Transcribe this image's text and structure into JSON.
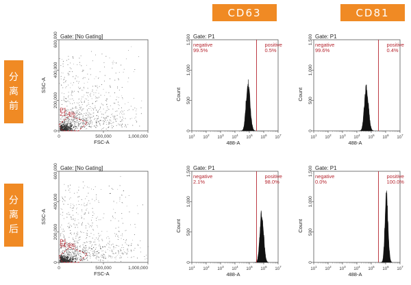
{
  "headers": {
    "cd63": "CD63",
    "cd81": "CD81"
  },
  "rows": [
    {
      "label_chars": [
        "分",
        "离",
        "前"
      ]
    },
    {
      "label_chars": [
        "分",
        "离",
        "后"
      ]
    }
  ],
  "chart_data": [
    {
      "type": "scatter",
      "row": 0,
      "gate": "Gate: [No Gating]",
      "xlabel": "FSC-A",
      "ylabel": "SSC-A",
      "xticks": [
        "0",
        "500,000",
        "1,000,000"
      ],
      "yticks": [
        "0",
        "200,000",
        "400,000",
        "600,000"
      ],
      "xlim": [
        0,
        1000000
      ],
      "ylim": [
        0,
        600000
      ],
      "region": {
        "name": "P1",
        "percent": "21.4%"
      }
    },
    {
      "type": "histogram",
      "row": 0,
      "marker": "CD63",
      "gate": "Gate: P1",
      "xlabel": "488-A",
      "ylabel": "Count",
      "yticks": [
        "0",
        "500",
        "1,000",
        "1,500"
      ],
      "ylim": [
        0,
        1500
      ],
      "xlim_log": [
        1,
        7
      ],
      "threshold_log": 5.5,
      "negative": {
        "label": "negative",
        "percent": "99.5%"
      },
      "positive": {
        "label": "positive",
        "percent": "0.5%"
      },
      "peak_log": 4.9,
      "peak_count": 780,
      "sigma_log": 0.13
    },
    {
      "type": "histogram",
      "row": 0,
      "marker": "CD81",
      "gate": "Gate: P1",
      "xlabel": "488-A",
      "ylabel": "Count",
      "yticks": [
        "0",
        "500",
        "1,000",
        "1,500"
      ],
      "ylim": [
        0,
        1500
      ],
      "xlim_log": [
        1,
        7
      ],
      "threshold_log": 5.5,
      "negative": {
        "label": "negative",
        "percent": "99.6%"
      },
      "positive": {
        "label": "positive",
        "percent": "0.4%"
      },
      "peak_log": 4.65,
      "peak_count": 720,
      "sigma_log": 0.13
    },
    {
      "type": "scatter",
      "row": 1,
      "gate": "Gate: [No Gating]",
      "xlabel": "FSC-A",
      "ylabel": "SSC-A",
      "xticks": [
        "0",
        "500,000",
        "1,000,000"
      ],
      "yticks": [
        "0",
        "200,000",
        "400,000",
        "600,000"
      ],
      "xlim": [
        0,
        1000000
      ],
      "ylim": [
        0,
        600000
      ],
      "region": {
        "name": "P1",
        "percent": "94.9%"
      }
    },
    {
      "type": "histogram",
      "row": 1,
      "marker": "CD63",
      "gate": "Gate: P1",
      "xlabel": "488-A",
      "ylabel": "Count",
      "yticks": [
        "0",
        "500",
        "1,000",
        "1,500"
      ],
      "ylim": [
        0,
        1500
      ],
      "xlim_log": [
        1,
        7
      ],
      "threshold_log": 5.5,
      "negative": {
        "label": "negative",
        "percent": "2.1%"
      },
      "positive": {
        "label": "positive",
        "percent": "98.0%"
      },
      "peak_log": 5.85,
      "peak_count": 840,
      "sigma_log": 0.12
    },
    {
      "type": "histogram",
      "row": 1,
      "marker": "CD81",
      "gate": "Gate: P1",
      "xlabel": "488-A",
      "ylabel": "Count",
      "yticks": [
        "0",
        "500",
        "1,000",
        "1,500"
      ],
      "ylim": [
        0,
        1500
      ],
      "xlim_log": [
        1,
        7
      ],
      "threshold_log": 5.5,
      "negative": {
        "label": "negative",
        "percent": "0.0%"
      },
      "positive": {
        "label": "positive",
        "percent": "100.0%"
      },
      "peak_log": 6.05,
      "peak_count": 1080,
      "sigma_log": 0.1
    }
  ]
}
